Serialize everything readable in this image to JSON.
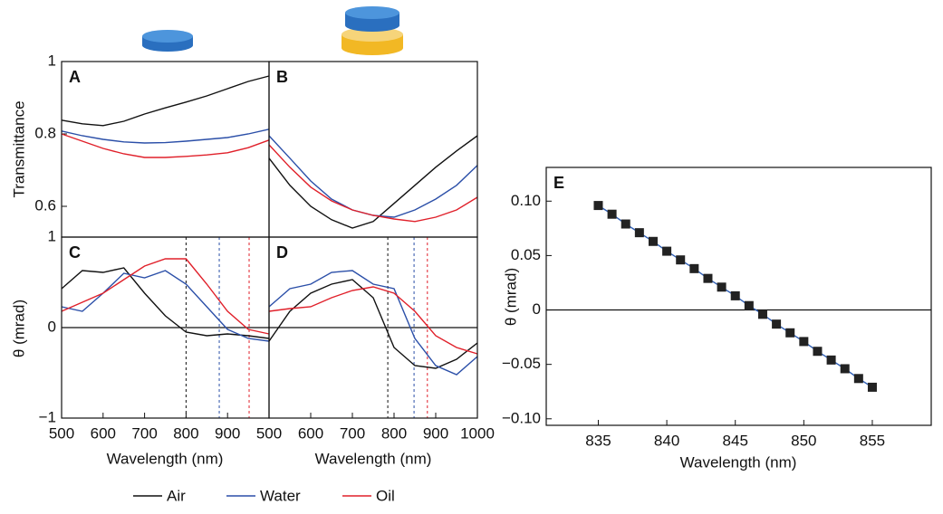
{
  "chart_data": [
    {
      "type": "line",
      "panel": "A",
      "ylabel": "Transmittance",
      "x": [
        500,
        550,
        600,
        650,
        700,
        750,
        800,
        850,
        900,
        950,
        1000
      ],
      "xlim": [
        500,
        1000
      ],
      "ylim": [
        0.515,
        1
      ],
      "yticks": [
        0.6,
        0.8,
        1
      ],
      "series": [
        {
          "name": "Air",
          "color": "#111111",
          "values": [
            0.838,
            0.828,
            0.823,
            0.835,
            0.855,
            0.872,
            0.888,
            0.905,
            0.925,
            0.945,
            0.96
          ]
        },
        {
          "name": "Water",
          "color": "#2b4fa8",
          "values": [
            0.808,
            0.795,
            0.785,
            0.778,
            0.775,
            0.776,
            0.78,
            0.785,
            0.79,
            0.8,
            0.813
          ]
        },
        {
          "name": "Oil",
          "color": "#e0202a",
          "values": [
            0.8,
            0.78,
            0.76,
            0.745,
            0.735,
            0.735,
            0.738,
            0.742,
            0.748,
            0.762,
            0.783
          ]
        }
      ]
    },
    {
      "type": "line",
      "panel": "B",
      "x": [
        500,
        550,
        600,
        650,
        700,
        750,
        800,
        850,
        900,
        950,
        1000
      ],
      "xlim": [
        500,
        1000
      ],
      "ylim": [
        0.515,
        1
      ],
      "series": [
        {
          "color": "#111111",
          "values": [
            0.733,
            0.658,
            0.6,
            0.563,
            0.54,
            0.558,
            0.608,
            0.658,
            0.708,
            0.753,
            0.795
          ]
        },
        {
          "color": "#2b4fa8",
          "values": [
            0.795,
            0.733,
            0.67,
            0.62,
            0.59,
            0.575,
            0.57,
            0.59,
            0.62,
            0.658,
            0.713
          ]
        },
        {
          "color": "#e0202a",
          "values": [
            0.77,
            0.708,
            0.653,
            0.615,
            0.59,
            0.575,
            0.565,
            0.558,
            0.57,
            0.59,
            0.625
          ]
        }
      ]
    },
    {
      "type": "line",
      "panel": "C",
      "ylabel": "θ (mrad)",
      "xlabel": "Wavelength (nm)",
      "x": [
        500,
        550,
        600,
        650,
        700,
        750,
        800,
        850,
        900,
        950,
        1000
      ],
      "xlim": [
        500,
        1000
      ],
      "xticks": [
        500,
        600,
        700,
        800,
        900
      ],
      "ylim": [
        -1,
        1
      ],
      "yticks": [
        {
          "value": -1,
          "label": "−1"
        },
        0,
        1
      ],
      "zero_line": true,
      "vlines": [
        {
          "x": 800,
          "color": "#111111"
        },
        {
          "x": 880,
          "color": "#2b4fa8"
        },
        {
          "x": 952,
          "color": "#e0202a"
        }
      ],
      "series": [
        {
          "color": "#111111",
          "values": [
            0.43,
            0.63,
            0.61,
            0.66,
            0.38,
            0.13,
            -0.05,
            -0.09,
            -0.07,
            -0.09,
            -0.12
          ]
        },
        {
          "color": "#2b4fa8",
          "values": [
            0.23,
            0.18,
            0.38,
            0.6,
            0.55,
            0.63,
            0.48,
            0.23,
            -0.02,
            -0.12,
            -0.15
          ]
        },
        {
          "color": "#e0202a",
          "values": [
            0.18,
            0.28,
            0.38,
            0.53,
            0.68,
            0.76,
            0.76,
            0.48,
            0.18,
            -0.02,
            -0.07
          ]
        }
      ]
    },
    {
      "type": "line",
      "panel": "D",
      "xlabel": "Wavelength (nm)",
      "x": [
        500,
        550,
        600,
        650,
        700,
        750,
        800,
        850,
        900,
        950,
        1000
      ],
      "xlim": [
        500,
        1000
      ],
      "xticks": [
        500,
        600,
        700,
        800,
        900,
        1000
      ],
      "ylim": [
        -1,
        1
      ],
      "zero_line": true,
      "vlines": [
        {
          "x": 785,
          "color": "#111111"
        },
        {
          "x": 848,
          "color": "#2b4fa8"
        },
        {
          "x": 880,
          "color": "#e0202a"
        }
      ],
      "series": [
        {
          "color": "#111111",
          "values": [
            -0.15,
            0.18,
            0.38,
            0.48,
            0.53,
            0.33,
            -0.22,
            -0.42,
            -0.45,
            -0.35,
            -0.17
          ]
        },
        {
          "color": "#2b4fa8",
          "values": [
            0.23,
            0.43,
            0.48,
            0.61,
            0.63,
            0.48,
            0.43,
            -0.12,
            -0.42,
            -0.52,
            -0.32
          ]
        },
        {
          "color": "#e0202a",
          "values": [
            0.18,
            0.21,
            0.23,
            0.33,
            0.41,
            0.45,
            0.38,
            0.18,
            -0.09,
            -0.22,
            -0.29
          ]
        }
      ]
    },
    {
      "type": "line",
      "panel": "E",
      "ylabel": "θ (mrad)",
      "xlabel": "Wavelength (nm)",
      "markers": true,
      "marker_color": "#222222",
      "x": [
        835,
        836,
        837,
        838,
        839,
        840,
        841,
        842,
        843,
        844,
        845,
        846,
        847,
        848,
        849,
        850,
        851,
        852,
        853,
        854,
        855
      ],
      "xlim": [
        831.2,
        859.3
      ],
      "xticks": [
        835,
        840,
        845,
        850,
        855
      ],
      "ylim": [
        -0.106,
        0.131
      ],
      "yticks": [
        {
          "value": -0.1,
          "label": "−0.10"
        },
        {
          "value": -0.05,
          "label": "−0.05"
        },
        0,
        0.05,
        {
          "value": 0.1,
          "label": "0.10"
        }
      ],
      "zero_line": true,
      "series": [
        {
          "color": "#2f5fb5",
          "values": [
            0.096,
            0.088,
            0.079,
            0.071,
            0.063,
            0.054,
            0.046,
            0.038,
            0.029,
            0.021,
            0.013,
            0.004,
            -0.004,
            -0.013,
            -0.021,
            -0.029,
            -0.038,
            -0.046,
            -0.054,
            -0.063,
            -0.071
          ]
        }
      ]
    }
  ]
}
